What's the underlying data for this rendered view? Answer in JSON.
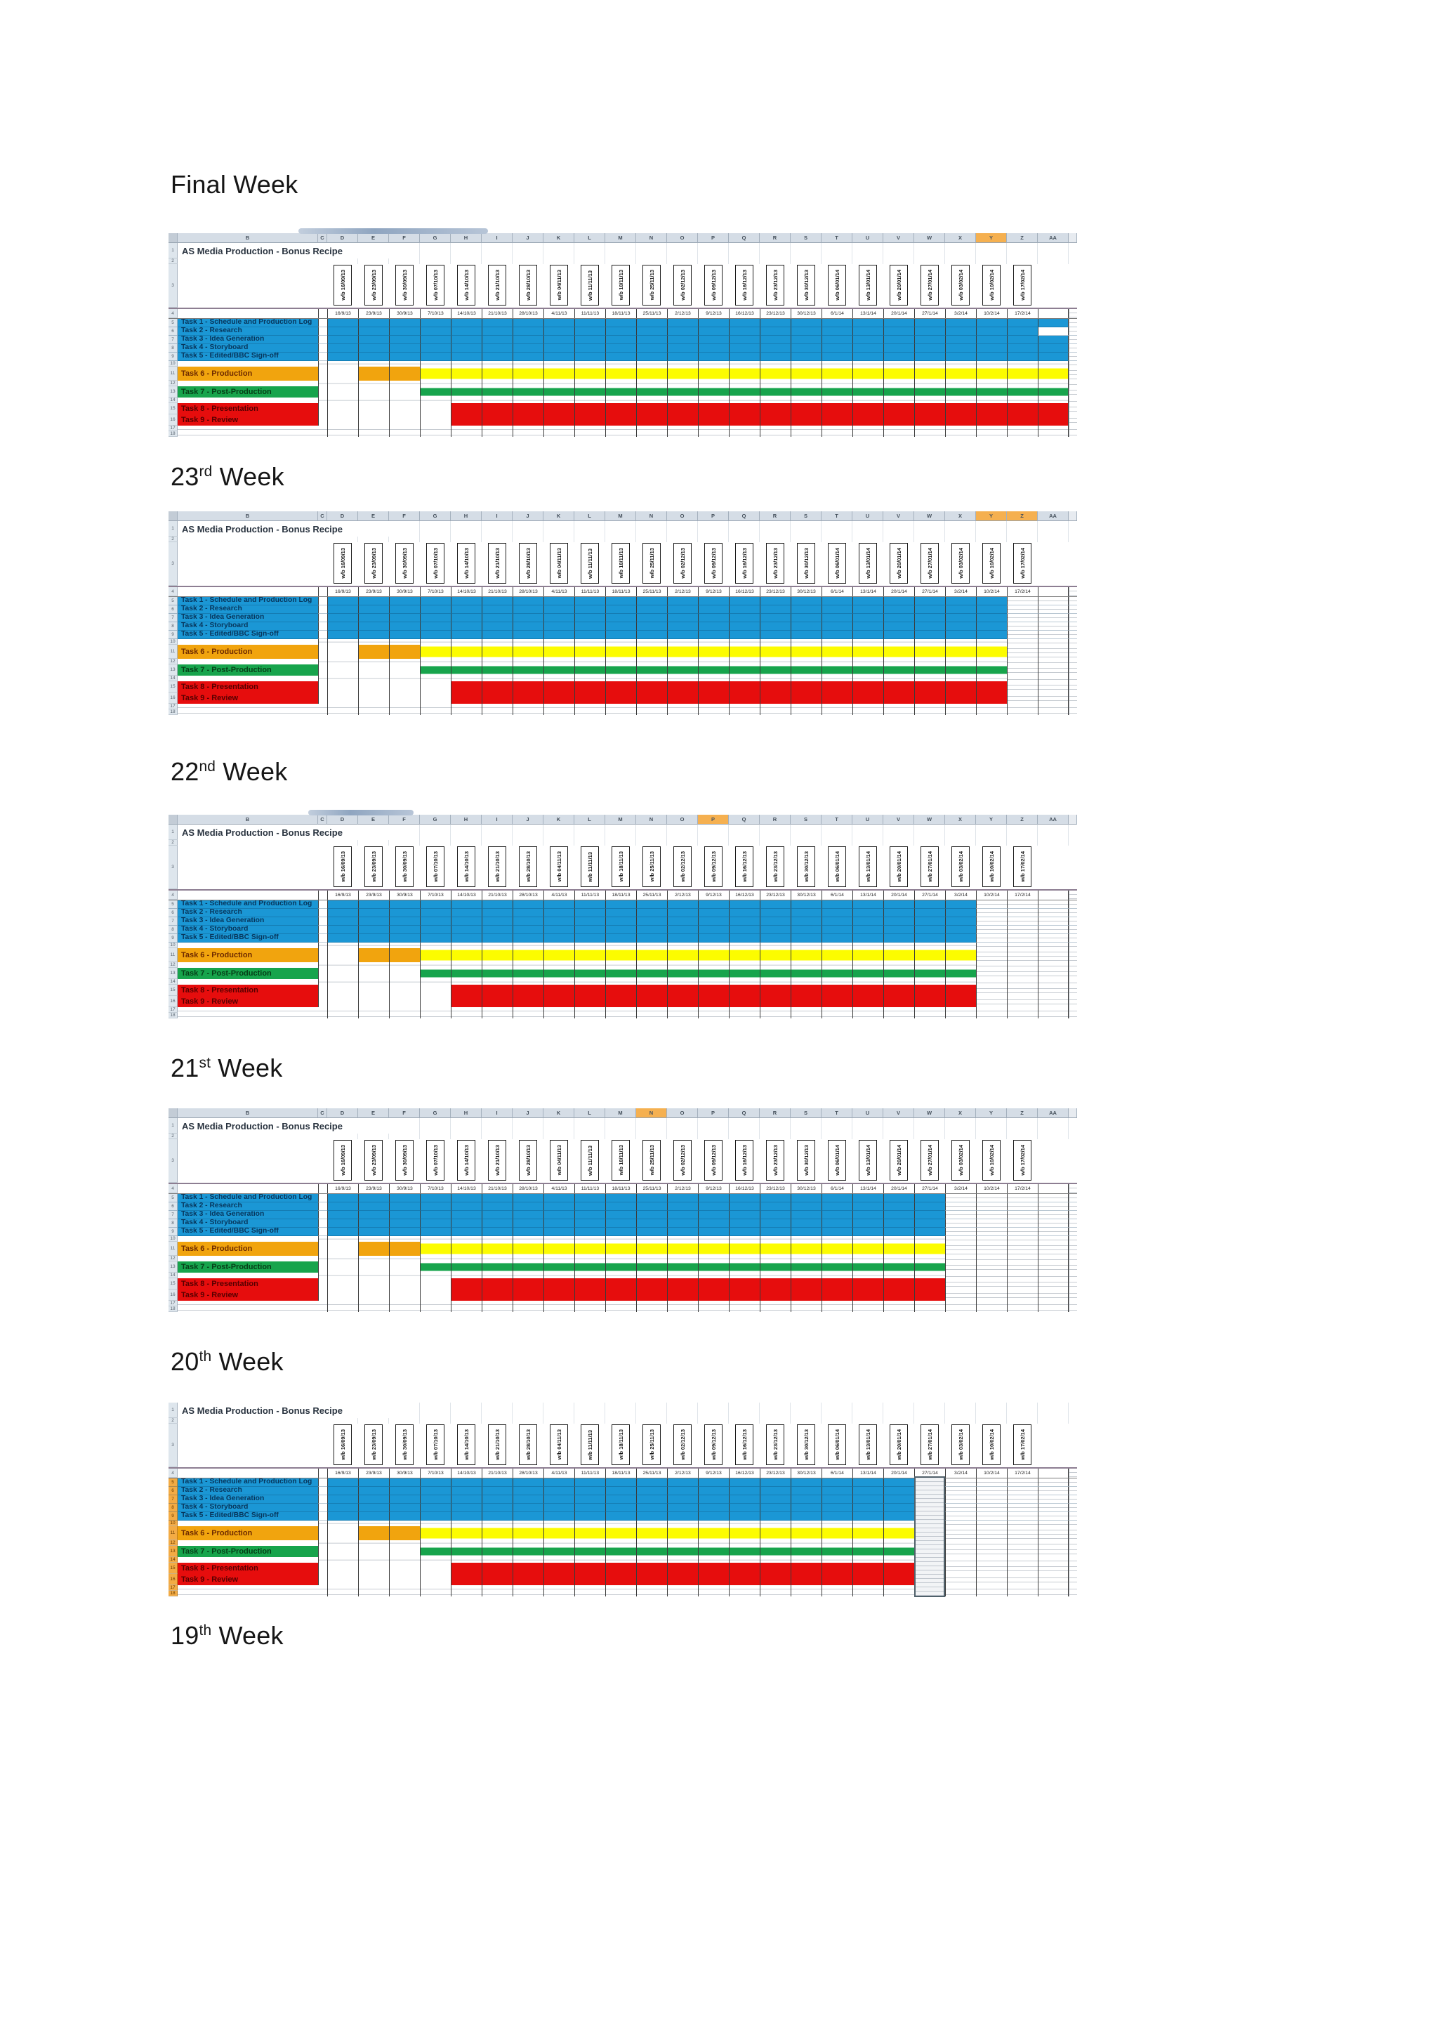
{
  "document": {
    "headings": [
      {
        "prefix": "Final",
        "sup": "",
        "suffix": " Week"
      },
      {
        "prefix": "23",
        "sup": "rd",
        "suffix": " Week"
      },
      {
        "prefix": "22",
        "sup": "nd",
        "suffix": " Week"
      },
      {
        "prefix": "21",
        "sup": "st",
        "suffix": " Week"
      },
      {
        "prefix": "20",
        "sup": "th",
        "suffix": " Week"
      },
      {
        "prefix": "19",
        "sup": "th",
        "suffix": " Week"
      }
    ]
  },
  "spreadsheet": {
    "title": "AS Media Production - Bonus Recipe",
    "column_letters": [
      "B",
      "C",
      "D",
      "E",
      "F",
      "G",
      "H",
      "I",
      "J",
      "K",
      "L",
      "M",
      "N",
      "O",
      "P",
      "Q",
      "R",
      "S",
      "T",
      "U",
      "V",
      "W",
      "X",
      "Y",
      "Z",
      "AA"
    ],
    "week_headers": [
      "w/b 16/09/13",
      "w/b 23/09/13",
      "w/b 30/09/13",
      "w/b 07/10/13",
      "w/b 14/10/13",
      "w/b 21/10/13",
      "w/b 28/10/13",
      "w/b 04/11/13",
      "w/b 11/11/13",
      "w/b 18/11/13",
      "w/b 25/11/13",
      "w/b 02/12/13",
      "w/b 09/12/13",
      "w/b 16/12/13",
      "w/b 23/12/13",
      "w/b 30/12/13",
      "w/b 06/01/14",
      "w/b 13/01/14",
      "w/b 20/01/14",
      "w/b 27/01/14",
      "w/b 03/02/14",
      "w/b 10/02/14",
      "w/b 17/02/14"
    ],
    "date_labels": [
      "16/9/13",
      "23/9/13",
      "30/9/13",
      "7/10/13",
      "14/10/13",
      "21/10/13",
      "28/10/13",
      "4/11/13",
      "11/11/13",
      "18/11/13",
      "25/11/13",
      "2/12/13",
      "9/12/13",
      "16/12/13",
      "23/12/13",
      "30/12/13",
      "6/1/14",
      "13/1/14",
      "20/1/14",
      "27/1/14",
      "3/2/14",
      "10/2/14",
      "17/2/14"
    ],
    "row_numbers": [
      "1",
      "2",
      "3",
      "4",
      "5",
      "6",
      "7",
      "8",
      "9",
      "10",
      "11",
      "12",
      "13",
      "14",
      "15",
      "16",
      "17",
      "18"
    ],
    "tasks": [
      {
        "label": "Task 1 - Schedule and Production Log",
        "group": "blue"
      },
      {
        "label": "Task 2 - Research",
        "group": "blue"
      },
      {
        "label": "Task 3 - Idea Generation",
        "group": "blue"
      },
      {
        "label": "Task 4 - Storyboard",
        "group": "blue"
      },
      {
        "label": "Task 5 - Edited/BBC Sign-off",
        "group": "blue"
      },
      {
        "label": "Task 6 - Production",
        "group": "production"
      },
      {
        "label": "Task 7 - Post-Production",
        "group": "green"
      },
      {
        "label": "Task 8 - Presentation",
        "group": "red"
      },
      {
        "label": "Task 9 - Review",
        "group": "red"
      }
    ],
    "bar_rules": {
      "blue_start": 1,
      "orange_cols": [
        2,
        3
      ],
      "yellow_start": 4,
      "green_start": 4,
      "red_start": 5
    }
  },
  "charts": [
    {
      "name": "final-week",
      "bar_end": 24,
      "highlight_cols": [
        22
      ],
      "gap_cell": {
        "task": 1,
        "col": 24
      },
      "show_letters": true,
      "top_fragment": true,
      "row_numbers_highlighted": false
    },
    {
      "name": "23rd-week",
      "bar_end": 22,
      "highlight_cols": [
        22,
        23
      ],
      "show_letters": true,
      "top_fragment": false,
      "row_numbers_highlighted": false
    },
    {
      "name": "22nd-week",
      "bar_end": 21,
      "highlight_cols": [
        13
      ],
      "show_letters": true,
      "top_fragment": true,
      "row_numbers_highlighted": false
    },
    {
      "name": "21st-week",
      "bar_end": 20,
      "highlight_cols": [
        11
      ],
      "show_letters": true,
      "top_fragment": false,
      "row_numbers_highlighted": false
    },
    {
      "name": "20th-week",
      "bar_end": 19,
      "highlight_cols": [],
      "selected_col": 20,
      "show_letters": false,
      "top_fragment": false,
      "row_numbers_highlighted": true
    }
  ],
  "colors": {
    "blue": "#1b97d5",
    "orange": "#f1a40e",
    "yellow": "#fcfc00",
    "green": "#17a44c",
    "red": "#e60d0d",
    "chrome_bg": "#d5dde6",
    "chrome_border": "#a4b0bd",
    "highlight": "#f5b050",
    "selected_fill": "#dfe3ea",
    "selected_border": "#50616b",
    "grid_dark": "#3b3b3b",
    "grid_light": "#c6cbd1",
    "title_text": "#2a3440",
    "label_blue_text": "#07365c",
    "label_orange_text": "#6d2a00",
    "label_green_text": "#063f18",
    "label_red_text": "#570000",
    "page_background": "#ffffff"
  }
}
